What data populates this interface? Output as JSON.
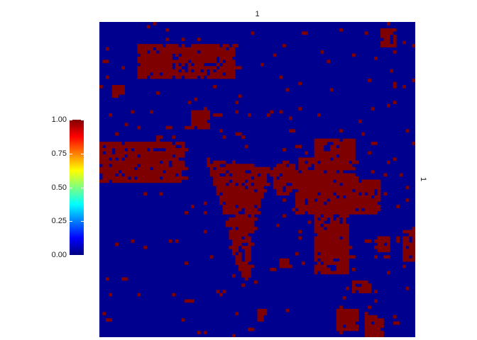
{
  "chart_data": {
    "type": "heatmap",
    "facet_top_label": "1",
    "facet_right_label": "1",
    "colorscale": [
      "#00007f",
      "#0000ff",
      "#007fff",
      "#00ffff",
      "#7fff7f",
      "#ffff00",
      "#ff7f00",
      "#ff0000",
      "#7f0000"
    ],
    "value_range": [
      0,
      1
    ],
    "colorbar_ticks": [
      "0.00",
      "0.25",
      "0.50",
      "0.75",
      "1.00"
    ],
    "grid_size": 100,
    "regions_value_1": [
      {
        "type": "rect",
        "x": [
          12,
          43
        ],
        "y": [
          7,
          18
        ]
      },
      {
        "type": "rect",
        "x": [
          0,
          27
        ],
        "y": [
          38,
          51
        ]
      },
      {
        "type": "poly",
        "points": [
          [
            34,
            44
          ],
          [
            54,
            46
          ],
          [
            48,
            69
          ],
          [
            48,
            81
          ],
          [
            46,
            82
          ],
          [
            43,
            76
          ],
          [
            40,
            63
          ]
        ]
      },
      {
        "type": "poly",
        "points": [
          [
            54,
            47
          ],
          [
            60,
            43
          ],
          [
            64,
            49
          ],
          [
            60,
            55
          ],
          [
            56,
            55
          ]
        ]
      },
      {
        "type": "rect",
        "x": [
          62,
          81
        ],
        "y": [
          48,
          61
        ]
      },
      {
        "type": "rect",
        "x": [
          68,
          81
        ],
        "y": [
          37,
          50
        ]
      },
      {
        "type": "rect",
        "x": [
          68,
          79
        ],
        "y": [
          58,
          80
        ]
      },
      {
        "type": "rect",
        "x": [
          78,
          89
        ],
        "y": [
          50,
          61
        ]
      },
      {
        "type": "rect",
        "x": [
          63,
          71
        ],
        "y": [
          43,
          48
        ]
      },
      {
        "type": "rect",
        "x": [
          29,
          35
        ],
        "y": [
          28,
          34
        ]
      },
      {
        "type": "rect",
        "x": [
          96,
          100
        ],
        "y": [
          66,
          76
        ]
      },
      {
        "type": "rect",
        "x": [
          75,
          82
        ],
        "y": [
          91,
          98
        ]
      },
      {
        "type": "rect",
        "x": [
          50,
          53
        ],
        "y": [
          91,
          95
        ]
      },
      {
        "type": "rect",
        "x": [
          89,
          94
        ],
        "y": [
          2,
          8
        ]
      },
      {
        "type": "rect",
        "x": [
          84,
          90
        ],
        "y": [
          93,
          100
        ]
      },
      {
        "type": "rect",
        "x": [
          57,
          60
        ],
        "y": [
          75,
          78
        ]
      },
      {
        "type": "rect",
        "x": [
          87,
          92
        ],
        "y": [
          68,
          73
        ]
      },
      {
        "type": "rect",
        "x": [
          4,
          8
        ],
        "y": [
          20,
          24
        ]
      },
      {
        "type": "rect",
        "x": [
          80,
          86
        ],
        "y": [
          82,
          86
        ]
      }
    ],
    "noise_seed": 7,
    "noise_density": 0.022,
    "noise_min_spread": 0.012
  }
}
